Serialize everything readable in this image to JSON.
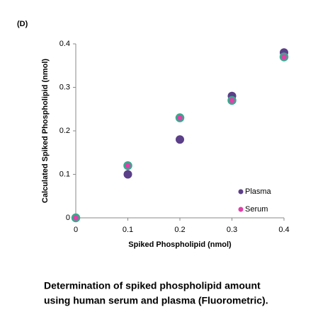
{
  "chart_data": {
    "type": "scatter",
    "panel_label": "(D)",
    "xlabel": "Spiked Phospholipid (nmol)",
    "ylabel": "Calculated Spiked Phospholipid (nmol)",
    "caption": [
      "Determination of spiked phospholipid amount",
      "using human serum and plasma (Fluorometric)."
    ],
    "xlim": [
      0,
      0.4
    ],
    "ylim": [
      0,
      0.4
    ],
    "xticks": [
      0,
      0.1,
      0.2,
      0.3,
      0.4
    ],
    "yticks": [
      0,
      0.1,
      0.2,
      0.3,
      0.4
    ],
    "legend": "lower right",
    "series": [
      {
        "name": "Plasma",
        "color": "#5b3f88",
        "x": [
          0,
          0.1,
          0.2,
          0.3,
          0.4
        ],
        "values": [
          0,
          0.1,
          0.18,
          0.28,
          0.38
        ]
      },
      {
        "name": "Serum",
        "color": "#e040a8",
        "edgecolor": "#3aa88e",
        "x": [
          0,
          0.1,
          0.2,
          0.3,
          0.4
        ],
        "values": [
          0,
          0.12,
          0.23,
          0.27,
          0.37
        ]
      }
    ]
  }
}
